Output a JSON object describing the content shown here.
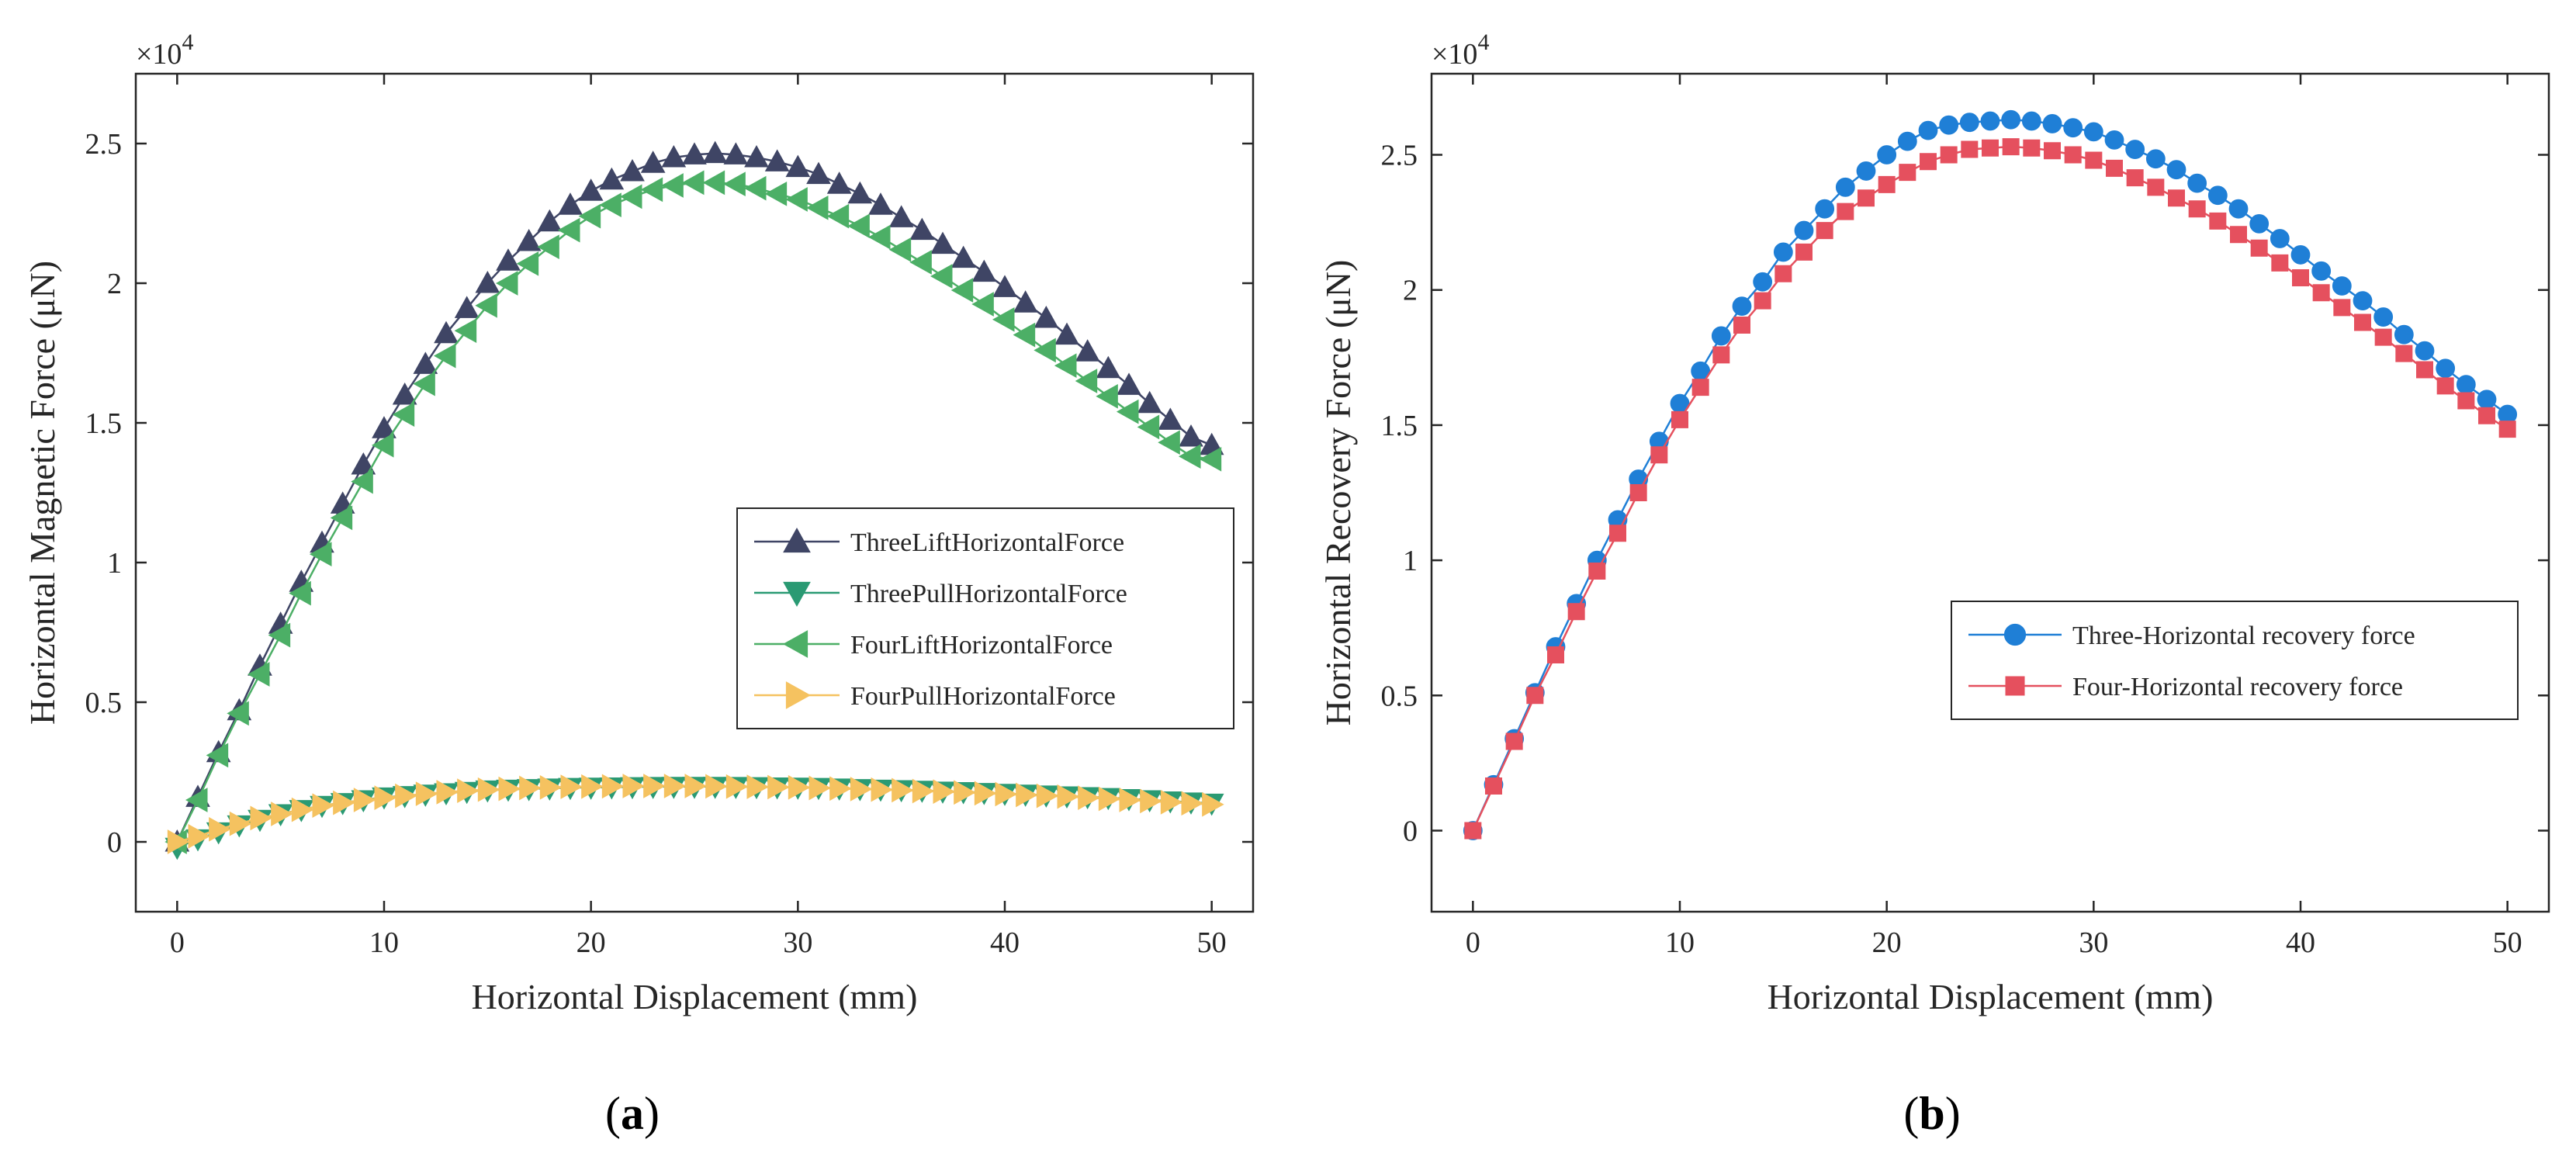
{
  "chart_data": [
    {
      "type": "line",
      "panel_label": "(a)",
      "multiplier_base": "×10",
      "multiplier_exp": "4",
      "xlabel": "Horizontal Displacement (mm)",
      "ylabel": "Horizontal Magnetic Force (μN)",
      "xlim": [
        -2,
        52
      ],
      "ylim": [
        -2500,
        27500
      ],
      "xticks": [
        0,
        10,
        20,
        30,
        40,
        50
      ],
      "xtick_labels": [
        "0",
        "10",
        "20",
        "30",
        "40",
        "50"
      ],
      "yticks": [
        0,
        5000,
        10000,
        15000,
        20000,
        25000
      ],
      "ytick_labels": [
        "0",
        "0.5",
        "1",
        "1.5",
        "2",
        "2.5"
      ],
      "legend_position": "center-right",
      "series": [
        {
          "name": "ThreeLiftHorizontalForce",
          "color": "#3f4565",
          "marker": "triangle-up",
          "x_start": 0,
          "x_step": 1,
          "values": [
            0,
            1600,
            3200,
            4700,
            6300,
            7800,
            9300,
            10700,
            12100,
            13500,
            14800,
            16000,
            17100,
            18200,
            19100,
            20000,
            20800,
            21500,
            22200,
            22800,
            23300,
            23700,
            24000,
            24300,
            24500,
            24600,
            24650,
            24600,
            24500,
            24350,
            24150,
            23900,
            23550,
            23200,
            22800,
            22350,
            21900,
            21400,
            20900,
            20400,
            19850,
            19300,
            18750,
            18150,
            17550,
            16950,
            16350,
            15700,
            15100,
            14500,
            14200
          ]
        },
        {
          "name": "ThreePullHorizontalForce",
          "color": "#2a9a73",
          "marker": "triangle-down",
          "x_start": 0,
          "x_step": 1,
          "values": [
            -200,
            100,
            350,
            600,
            800,
            1000,
            1150,
            1300,
            1400,
            1500,
            1600,
            1650,
            1700,
            1750,
            1800,
            1850,
            1880,
            1900,
            1920,
            1940,
            1950,
            1960,
            1970,
            1975,
            1980,
            1980,
            1980,
            1975,
            1970,
            1960,
            1950,
            1940,
            1920,
            1900,
            1880,
            1860,
            1840,
            1810,
            1790,
            1760,
            1730,
            1700,
            1670,
            1640,
            1610,
            1580,
            1540,
            1500,
            1460,
            1420,
            1380
          ]
        },
        {
          "name": "FourLiftHorizontalForce",
          "color": "#4caf66",
          "marker": "triangle-left",
          "x_start": 0,
          "x_step": 1,
          "values": [
            0,
            1500,
            3100,
            4600,
            6000,
            7400,
            8900,
            10300,
            11600,
            12900,
            14200,
            15300,
            16400,
            17400,
            18300,
            19200,
            20000,
            20700,
            21300,
            21900,
            22400,
            22800,
            23100,
            23350,
            23500,
            23600,
            23600,
            23550,
            23400,
            23200,
            23000,
            22700,
            22400,
            22050,
            21650,
            21200,
            20750,
            20250,
            19750,
            19250,
            18700,
            18150,
            17600,
            17050,
            16500,
            15950,
            15400,
            14850,
            14300,
            13800,
            13700
          ]
        },
        {
          "name": "FourPullHorizontalForce",
          "color": "#f5c260",
          "marker": "triangle-right",
          "x_start": 0,
          "x_step": 1,
          "values": [
            0,
            200,
            450,
            650,
            850,
            1000,
            1150,
            1300,
            1400,
            1500,
            1580,
            1650,
            1720,
            1780,
            1830,
            1870,
            1900,
            1930,
            1950,
            1970,
            1980,
            1990,
            2000,
            2000,
            2000,
            2000,
            1990,
            1980,
            1970,
            1960,
            1950,
            1930,
            1910,
            1890,
            1870,
            1850,
            1820,
            1800,
            1770,
            1740,
            1710,
            1680,
            1650,
            1620,
            1580,
            1540,
            1500,
            1460,
            1420,
            1380,
            1340
          ]
        }
      ]
    },
    {
      "type": "line",
      "panel_label": "(b)",
      "multiplier_base": "×10",
      "multiplier_exp": "4",
      "xlabel": "Horizontal Displacement (mm)",
      "ylabel": "Horizontal Recovery Force (μN)",
      "xlim": [
        -2,
        52
      ],
      "ylim": [
        -3000,
        28000
      ],
      "xticks": [
        0,
        10,
        20,
        30,
        40,
        50
      ],
      "xtick_labels": [
        "0",
        "10",
        "20",
        "30",
        "40",
        "50"
      ],
      "yticks": [
        0,
        5000,
        10000,
        15000,
        20000,
        25000
      ],
      "ytick_labels": [
        "0",
        "0.5",
        "1",
        "1.5",
        "2",
        "2.5"
      ],
      "legend_position": "center-right",
      "series": [
        {
          "name": "Three-Horizontal recovery force",
          "color": "#1f7fd6",
          "marker": "circle",
          "x_start": 0,
          "x_step": 1,
          "values": [
            0,
            1700,
            3400,
            5100,
            6800,
            8400,
            10000,
            11500,
            13000,
            14400,
            15800,
            17000,
            18300,
            19400,
            20300,
            21400,
            22200,
            23000,
            23800,
            24400,
            25000,
            25500,
            25900,
            26100,
            26200,
            26250,
            26300,
            26250,
            26150,
            26000,
            25850,
            25550,
            25200,
            24850,
            24450,
            23950,
            23500,
            23000,
            22450,
            21900,
            21300,
            20700,
            20150,
            19600,
            19000,
            18350,
            17750,
            17100,
            16500,
            15950,
            15400
          ]
        },
        {
          "name": "Four-Horizontal recovery force",
          "color": "#e5505e",
          "marker": "square",
          "x_start": 0,
          "x_step": 1,
          "values": [
            0,
            1650,
            3300,
            5000,
            6500,
            8100,
            9600,
            11000,
            12500,
            13900,
            15200,
            16400,
            17600,
            18700,
            19600,
            20600,
            21400,
            22200,
            22900,
            23400,
            23900,
            24350,
            24750,
            25000,
            25200,
            25250,
            25300,
            25250,
            25150,
            25000,
            24800,
            24500,
            24150,
            23800,
            23400,
            23000,
            22550,
            22050,
            21550,
            21000,
            20450,
            19900,
            19350,
            18800,
            18250,
            17650,
            17050,
            16450,
            15900,
            15350,
            14850
          ]
        }
      ]
    }
  ]
}
